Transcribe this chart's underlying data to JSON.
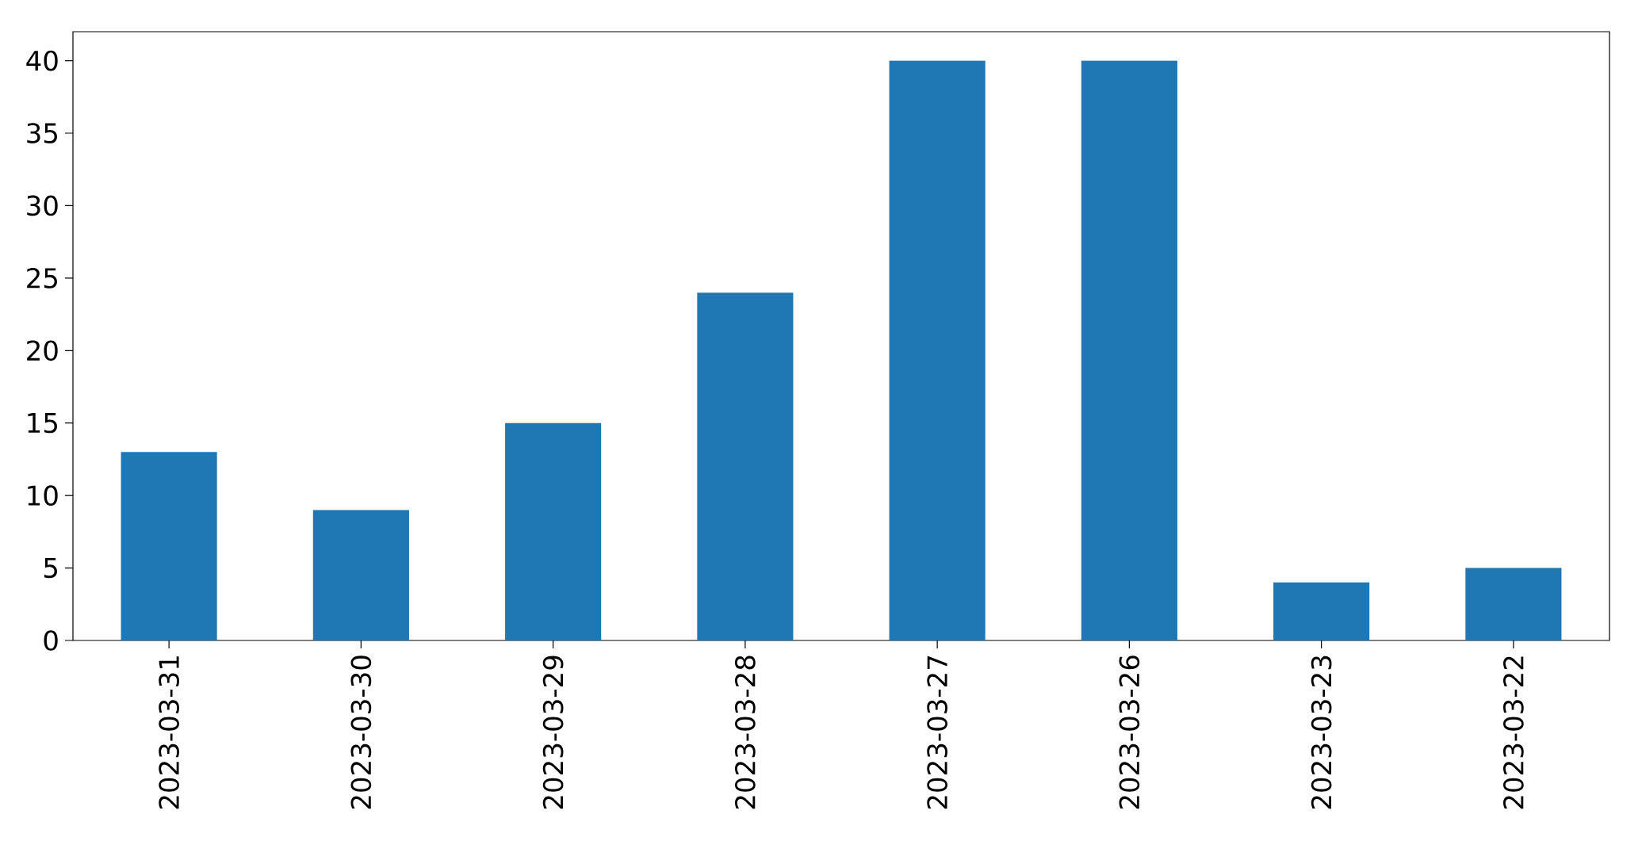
{
  "chart_data": {
    "type": "bar",
    "categories": [
      "2023-03-31",
      "2023-03-30",
      "2023-03-29",
      "2023-03-28",
      "2023-03-27",
      "2023-03-26",
      "2023-03-23",
      "2023-03-22"
    ],
    "values": [
      13,
      9,
      15,
      24,
      40,
      40,
      4,
      5
    ],
    "color": "#1f77b4",
    "ylim": [
      0,
      42
    ],
    "yticks": [
      0,
      5,
      10,
      15,
      20,
      25,
      30,
      35,
      40
    ]
  }
}
